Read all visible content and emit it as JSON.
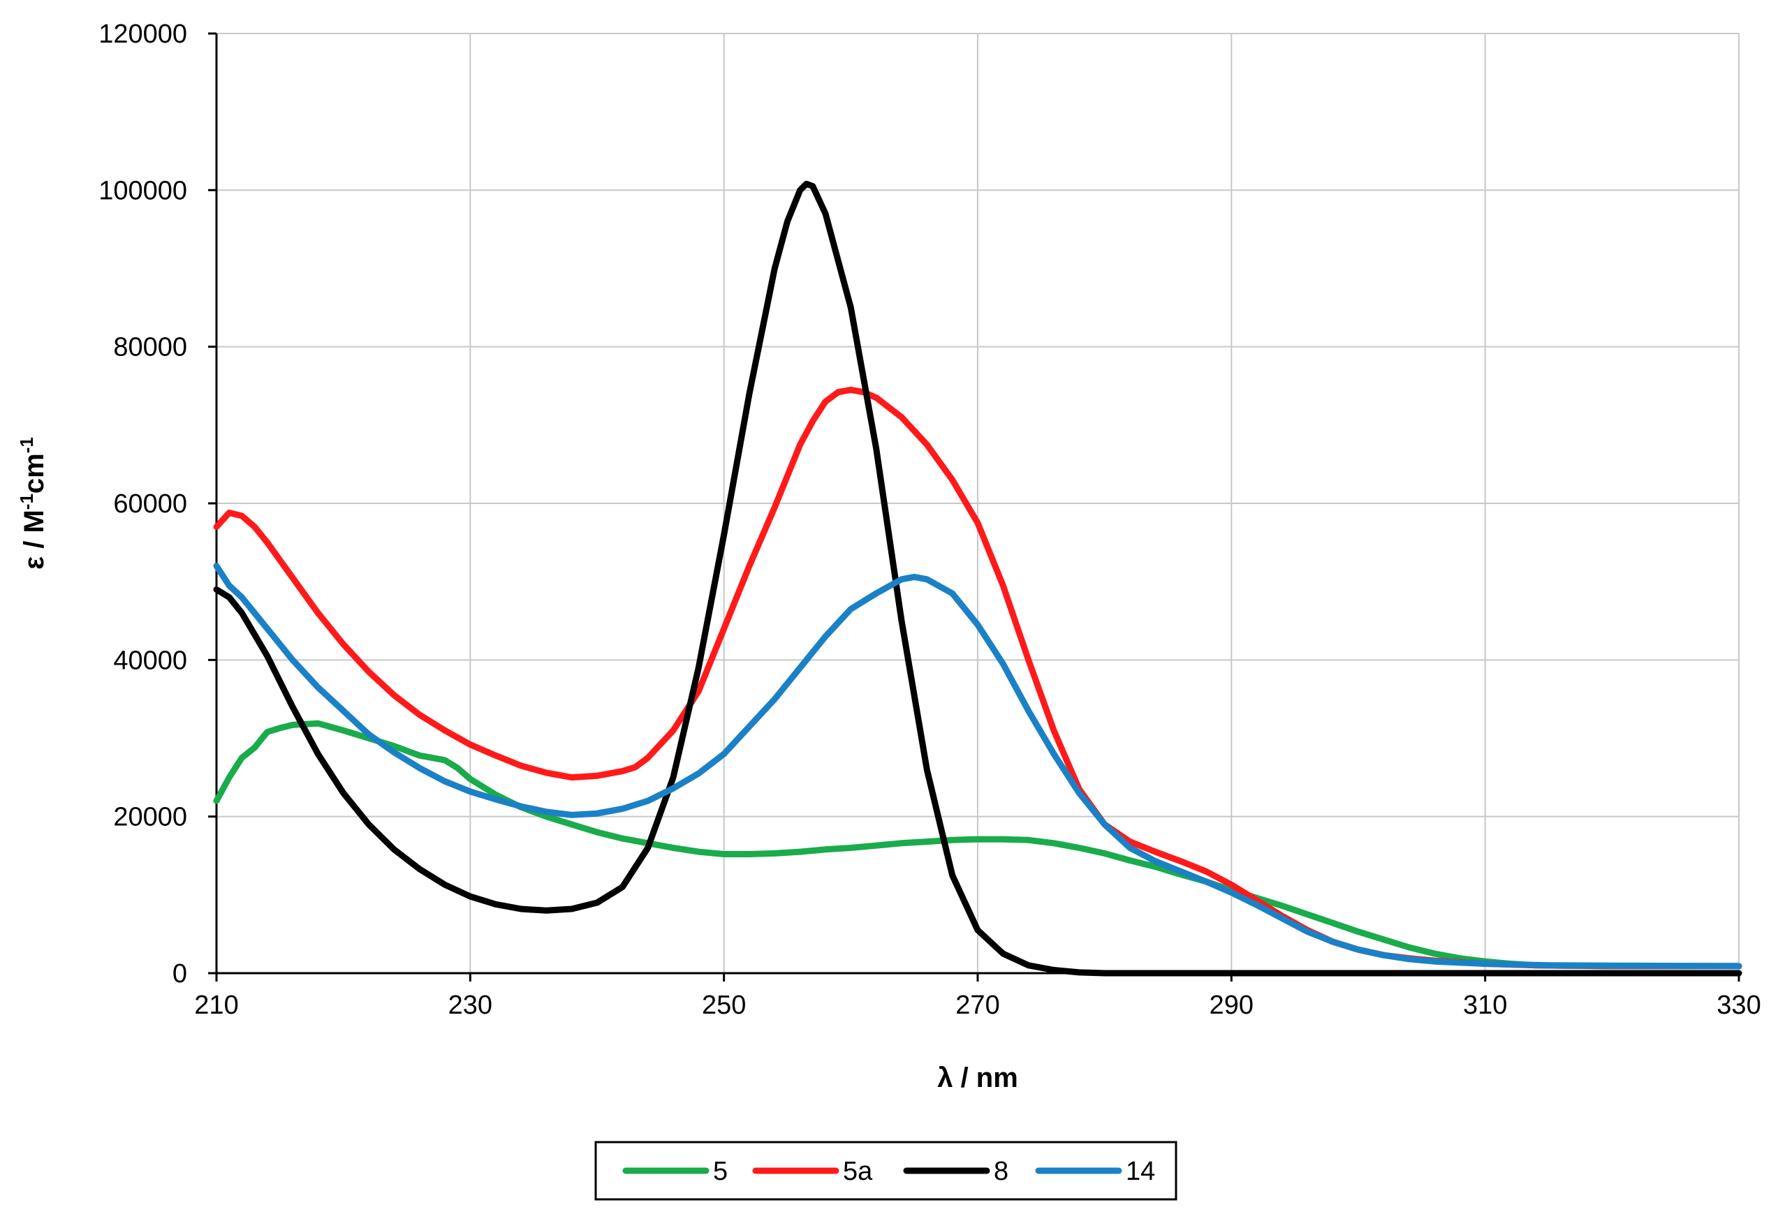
{
  "chart_data": {
    "type": "line",
    "title": "",
    "xlabel": "λ / nm",
    "ylabel": {
      "base": "ε / M",
      "sup1": "-1",
      "mid": "cm",
      "sup2": "-1"
    },
    "xlim": [
      210,
      330
    ],
    "ylim": [
      0,
      120000
    ],
    "xticks": [
      "210",
      "230",
      "250",
      "270",
      "290",
      "310",
      "330"
    ],
    "yticks": [
      "0",
      "20000",
      "40000",
      "60000",
      "80000",
      "100000",
      "120000"
    ],
    "grid": true,
    "legend_position": "bottom",
    "series": [
      {
        "name": "5",
        "color": "#1aab4b",
        "points": [
          [
            210,
            22000
          ],
          [
            211,
            25000
          ],
          [
            212,
            27500
          ],
          [
            213,
            28800
          ],
          [
            214,
            30800
          ],
          [
            215,
            31300
          ],
          [
            216,
            31700
          ],
          [
            218,
            31900
          ],
          [
            220,
            31000
          ],
          [
            222,
            30000
          ],
          [
            224,
            29000
          ],
          [
            226,
            27800
          ],
          [
            228,
            27200
          ],
          [
            229,
            26200
          ],
          [
            230,
            24800
          ],
          [
            232,
            22800
          ],
          [
            234,
            21200
          ],
          [
            236,
            20000
          ],
          [
            238,
            19000
          ],
          [
            240,
            18000
          ],
          [
            242,
            17200
          ],
          [
            244,
            16600
          ],
          [
            246,
            16000
          ],
          [
            248,
            15500
          ],
          [
            250,
            15200
          ],
          [
            252,
            15200
          ],
          [
            254,
            15300
          ],
          [
            256,
            15500
          ],
          [
            258,
            15800
          ],
          [
            260,
            16000
          ],
          [
            262,
            16300
          ],
          [
            264,
            16600
          ],
          [
            266,
            16800
          ],
          [
            268,
            17000
          ],
          [
            270,
            17100
          ],
          [
            272,
            17100
          ],
          [
            274,
            17000
          ],
          [
            276,
            16600
          ],
          [
            278,
            16000
          ],
          [
            280,
            15300
          ],
          [
            282,
            14400
          ],
          [
            284,
            13600
          ],
          [
            286,
            12600
          ],
          [
            288,
            11700
          ],
          [
            290,
            10600
          ],
          [
            292,
            9600
          ],
          [
            294,
            8600
          ],
          [
            296,
            7500
          ],
          [
            298,
            6400
          ],
          [
            300,
            5300
          ],
          [
            302,
            4300
          ],
          [
            304,
            3300
          ],
          [
            306,
            2500
          ],
          [
            308,
            1900
          ],
          [
            310,
            1500
          ],
          [
            312,
            1200
          ],
          [
            314,
            1000
          ],
          [
            316,
            950
          ],
          [
            320,
            900
          ],
          [
            325,
            900
          ],
          [
            330,
            900
          ]
        ]
      },
      {
        "name": "5a",
        "color": "#ff1a1a",
        "points": [
          [
            210,
            57000
          ],
          [
            211,
            58800
          ],
          [
            212,
            58400
          ],
          [
            213,
            57000
          ],
          [
            214,
            55000
          ],
          [
            216,
            50500
          ],
          [
            218,
            46000
          ],
          [
            220,
            42000
          ],
          [
            222,
            38500
          ],
          [
            224,
            35500
          ],
          [
            226,
            33000
          ],
          [
            228,
            31000
          ],
          [
            230,
            29200
          ],
          [
            232,
            27800
          ],
          [
            234,
            26500
          ],
          [
            236,
            25600
          ],
          [
            238,
            25000
          ],
          [
            240,
            25200
          ],
          [
            242,
            25800
          ],
          [
            243,
            26300
          ],
          [
            244,
            27500
          ],
          [
            246,
            31000
          ],
          [
            248,
            36000
          ],
          [
            250,
            44000
          ],
          [
            252,
            52000
          ],
          [
            254,
            59500
          ],
          [
            256,
            67500
          ],
          [
            257,
            70500
          ],
          [
            258,
            73000
          ],
          [
            259,
            74200
          ],
          [
            260,
            74500
          ],
          [
            261,
            74200
          ],
          [
            262,
            73500
          ],
          [
            264,
            71000
          ],
          [
            266,
            67500
          ],
          [
            268,
            63000
          ],
          [
            270,
            57500
          ],
          [
            272,
            49500
          ],
          [
            274,
            40000
          ],
          [
            276,
            31000
          ],
          [
            278,
            23500
          ],
          [
            280,
            19000
          ],
          [
            282,
            16800
          ],
          [
            284,
            15500
          ],
          [
            286,
            14300
          ],
          [
            288,
            13000
          ],
          [
            290,
            11300
          ],
          [
            292,
            9300
          ],
          [
            294,
            7300
          ],
          [
            296,
            5500
          ],
          [
            298,
            4000
          ],
          [
            300,
            3000
          ],
          [
            302,
            2300
          ],
          [
            304,
            1900
          ],
          [
            306,
            1600
          ],
          [
            308,
            1400
          ],
          [
            310,
            1200
          ],
          [
            314,
            1000
          ],
          [
            320,
            900
          ],
          [
            330,
            900
          ]
        ]
      },
      {
        "name": "8",
        "color": "#000000",
        "points": [
          [
            210,
            49000
          ],
          [
            211,
            48000
          ],
          [
            212,
            46000
          ],
          [
            214,
            40500
          ],
          [
            216,
            34000
          ],
          [
            218,
            28000
          ],
          [
            220,
            23000
          ],
          [
            222,
            19000
          ],
          [
            224,
            15800
          ],
          [
            226,
            13300
          ],
          [
            228,
            11300
          ],
          [
            230,
            9800
          ],
          [
            232,
            8800
          ],
          [
            234,
            8200
          ],
          [
            236,
            8000
          ],
          [
            238,
            8200
          ],
          [
            240,
            9000
          ],
          [
            242,
            11000
          ],
          [
            244,
            16000
          ],
          [
            246,
            25000
          ],
          [
            248,
            39000
          ],
          [
            250,
            56000
          ],
          [
            252,
            74000
          ],
          [
            254,
            90000
          ],
          [
            255,
            96000
          ],
          [
            256,
            100000
          ],
          [
            256.5,
            100800
          ],
          [
            257,
            100500
          ],
          [
            258,
            97000
          ],
          [
            260,
            85000
          ],
          [
            262,
            67000
          ],
          [
            264,
            45000
          ],
          [
            266,
            26000
          ],
          [
            268,
            12500
          ],
          [
            270,
            5500
          ],
          [
            272,
            2500
          ],
          [
            274,
            1000
          ],
          [
            276,
            400
          ],
          [
            278,
            100
          ],
          [
            280,
            0
          ],
          [
            290,
            0
          ],
          [
            300,
            0
          ],
          [
            310,
            0
          ],
          [
            320,
            0
          ],
          [
            330,
            0
          ]
        ]
      },
      {
        "name": "14",
        "color": "#1b81c6",
        "points": [
          [
            210,
            52000
          ],
          [
            211,
            49500
          ],
          [
            212,
            48000
          ],
          [
            213,
            46000
          ],
          [
            214,
            44000
          ],
          [
            216,
            40000
          ],
          [
            218,
            36500
          ],
          [
            220,
            33500
          ],
          [
            222,
            30500
          ],
          [
            224,
            28200
          ],
          [
            226,
            26200
          ],
          [
            228,
            24500
          ],
          [
            230,
            23200
          ],
          [
            232,
            22200
          ],
          [
            234,
            21300
          ],
          [
            236,
            20600
          ],
          [
            238,
            20200
          ],
          [
            240,
            20400
          ],
          [
            242,
            21000
          ],
          [
            244,
            22000
          ],
          [
            246,
            23600
          ],
          [
            248,
            25500
          ],
          [
            250,
            28000
          ],
          [
            252,
            31500
          ],
          [
            254,
            35000
          ],
          [
            256,
            39000
          ],
          [
            258,
            43000
          ],
          [
            260,
            46500
          ],
          [
            262,
            48500
          ],
          [
            264,
            50300
          ],
          [
            265,
            50600
          ],
          [
            266,
            50300
          ],
          [
            268,
            48500
          ],
          [
            270,
            44500
          ],
          [
            271,
            42000
          ],
          [
            272,
            39500
          ],
          [
            274,
            33500
          ],
          [
            276,
            28000
          ],
          [
            278,
            23000
          ],
          [
            280,
            19000
          ],
          [
            282,
            16000
          ],
          [
            284,
            14300
          ],
          [
            286,
            13000
          ],
          [
            288,
            11700
          ],
          [
            290,
            10300
          ],
          [
            292,
            8700
          ],
          [
            294,
            7000
          ],
          [
            296,
            5300
          ],
          [
            298,
            4000
          ],
          [
            300,
            3000
          ],
          [
            302,
            2300
          ],
          [
            304,
            1800
          ],
          [
            306,
            1500
          ],
          [
            310,
            1200
          ],
          [
            315,
            1000
          ],
          [
            320,
            950
          ],
          [
            330,
            900
          ]
        ]
      }
    ]
  }
}
